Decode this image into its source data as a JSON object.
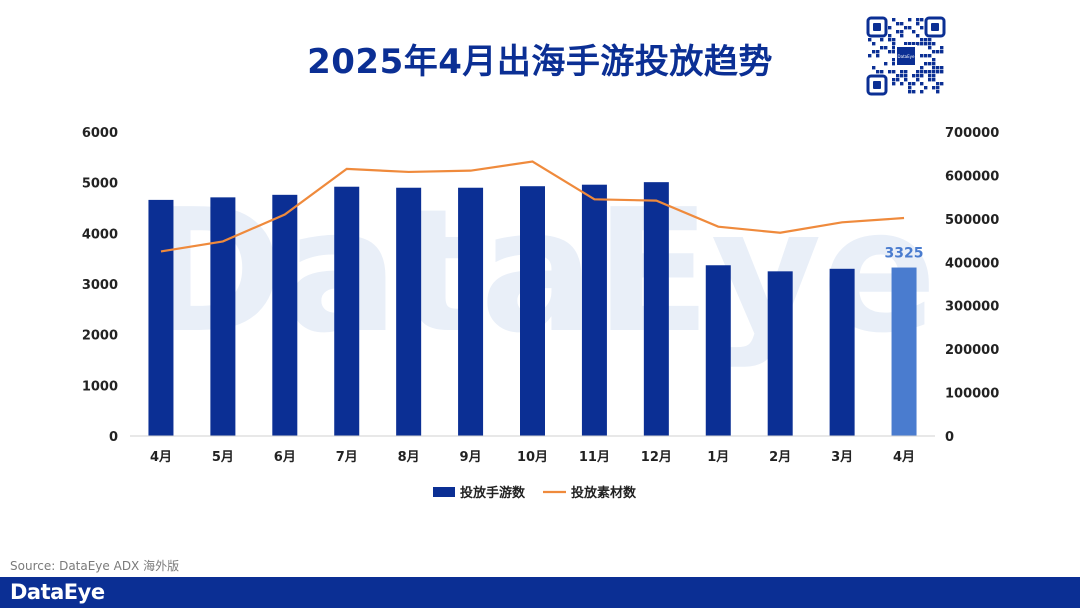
{
  "title": "2025年4月出海手游投放趋势",
  "source": "Source: DataEye ADX 海外版",
  "footer_logo": "DataEye",
  "watermark": "DataEye",
  "qr_logo_text": "DataEye",
  "colors": {
    "title": "#0b2f94",
    "bar": "#0b2f94",
    "bar_highlight": "#4a7ccf",
    "line": "#ef8a3c",
    "footer": "#0b2f94"
  },
  "chart_data": {
    "type": "bar",
    "title": "2025年4月出海手游投放趋势",
    "categories": [
      "4月",
      "5月",
      "6月",
      "7月",
      "8月",
      "9月",
      "10月",
      "11月",
      "12月",
      "1月",
      "2月",
      "3月",
      "4月"
    ],
    "ylim_left": [
      0,
      6000
    ],
    "yticks_left": [
      "0",
      "1000",
      "2000",
      "3000",
      "4000",
      "5000",
      "6000"
    ],
    "ylim_right": [
      0,
      700000
    ],
    "yticks_right": [
      "0",
      "100000",
      "200000",
      "300000",
      "400000",
      "500000",
      "600000",
      "700000"
    ],
    "series": [
      {
        "name": "投放手游数",
        "type": "bar",
        "axis": "left",
        "values": [
          4660,
          4710,
          4760,
          4920,
          4900,
          4900,
          4930,
          4960,
          5010,
          3370,
          3250,
          3300,
          3325
        ]
      },
      {
        "name": "投放素材数",
        "type": "line",
        "axis": "right",
        "values": [
          425000,
          448000,
          510000,
          615000,
          608000,
          611000,
          632000,
          545000,
          542000,
          482000,
          468000,
          492000,
          502000
        ]
      }
    ],
    "data_labels": [
      {
        "index": 12,
        "text": "3325"
      }
    ],
    "legend_position": "bottom",
    "grid": false
  }
}
